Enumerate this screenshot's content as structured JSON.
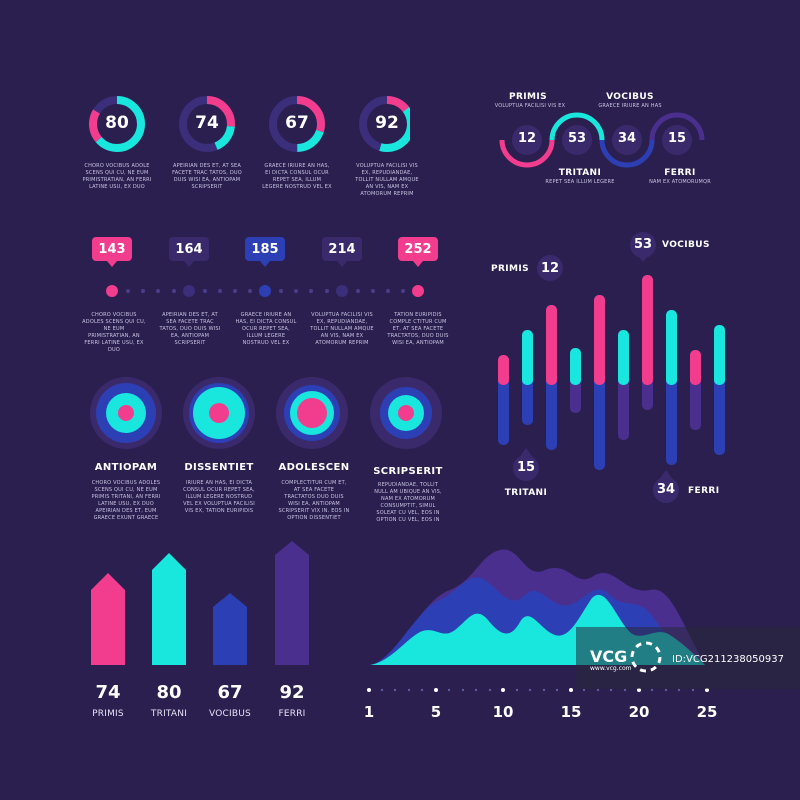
{
  "colors": {
    "background": "#2b1f4f",
    "pink": "#f23d8e",
    "cyan": "#19e6dc",
    "blue": "#2d3fb5",
    "purple": "#4a2f8f",
    "dark_circle": "#3a2a6c"
  },
  "donuts": [
    {
      "value": "80",
      "percent": 80,
      "text": "CHORO VOCIBUS ADOLE SCENS QUI CU, NE EUM PRIMISTRATIAN, AN FERRI LATINE USU, EX DUO"
    },
    {
      "value": "74",
      "percent": 74,
      "text": "APEIRIAN DES ET, AT SEA FACETE TRAC TATOS, DUO DUIS WISI EA, ANTIOPAM SCRIPSERIT"
    },
    {
      "value": "67",
      "percent": 67,
      "text": "GRAECE IRIURE AN HAS, EI DICTA CONSUL OCUR REPET SEA, ILLUM LEGERE NOSTRUD VEL EX"
    },
    {
      "value": "92",
      "percent": 92,
      "text": "VOLUPTUA FACILISI VIS EX, REPUDIANDAE, TOLLIT NULLAM AMQUE AN VIS, NAM EX ATOMORUM REPRIM"
    }
  ],
  "wave": {
    "items": [
      {
        "value": "12",
        "title": "PRIMIS",
        "sub": "VOLUPTUA FACILISI VIS EX"
      },
      {
        "value": "53",
        "title": "VOCIBUS",
        "sub": "GRAECE IRIURE AN HAS"
      },
      {
        "value": "34",
        "title": "TRITANI",
        "sub": "REPET SEA ILLUM LEGERE"
      },
      {
        "value": "15",
        "title": "FERRI",
        "sub": "NAM EX ATOMORUMQR"
      }
    ]
  },
  "timeline": {
    "pins": [
      "143",
      "164",
      "185",
      "214",
      "252"
    ],
    "texts": [
      "CHORO VOCIBUS ADOLES SCENS QUI CU, NE EUM PRIMISTRATIAN, AN FERRI LATINE USU, EX DUO",
      "APEIRIAN DES ET, AT SEA FACETE TRAC TATOS, DUO DUIS WISI EA, ANTIOPAM SCRIPSERIT",
      "GRAECE IRIURE AN HAS, EI DICTA CONSUL OCUR REPET SEA, ILLUM LEGERE NOSTRUD VEL EX",
      "VOLUPTUA FACILISI VIS EX, REPUDIANDAE, TOLLIT NULLAM AMQUE AN VIS, NAM EX ATOMORUM REPRIM",
      "TATION EURIPIDIS COMPLE CTITUR CUM ET, AT SEA FACETE TRACTATOS, DUO DUIS WISI EA, ANTIOPAM"
    ]
  },
  "targets": [
    {
      "title": "ANTIOPAM",
      "text": "CHORO VOCIBUS ADOLES SCENS QUI CU, NE EUM PRIMIS TRITANI, AN FERRI LATINE USU, EX DUO APEIRIAN DES ET, EUM GRAECE EXUNT GRAECE"
    },
    {
      "title": "DISSENTIET",
      "text": "IRIURE AN HAS, EI DICTA CONSUL OCUR REPET SEA, ILLUM LEGERE NOSTRUD VEL EX VOLUPTUA FACILISI VIS EX, TATION EURIPIDIS"
    },
    {
      "title": "ADOLESCEN",
      "text": "COMPLECTITUR CUM ET, AT SEA FACETE TRACTATOS DUO DUIS WISI EA, ANTIOPAM SCRIPSERIT VIX IN. EOS IN OPTION DISSENTIET"
    },
    {
      "title": "SCRIPSERIT",
      "text": "REPUDIANDAE, TOLLIT NULL AM UBIQUE AN VIS, NAM EX ATOMORUM CONSUMPTIT, SIMUL SOLEAT CU VEL, EOS IN OPTION CU VEL, EOS IN"
    }
  ],
  "bar_chart": {
    "callouts": [
      {
        "name": "PRIMIS",
        "value": "12"
      },
      {
        "name": "VOCIBUS",
        "value": "53"
      },
      {
        "name": "TRITANI",
        "value": "15"
      },
      {
        "name": "FERRI",
        "value": "34"
      }
    ]
  },
  "arrows": [
    {
      "value": "74",
      "label": "PRIMIS"
    },
    {
      "value": "80",
      "label": "TRITANI"
    },
    {
      "value": "67",
      "label": "VOCIBUS"
    },
    {
      "value": "92",
      "label": "FERRI"
    }
  ],
  "area_axis": [
    "1",
    "5",
    "10",
    "15",
    "20",
    "25"
  ],
  "watermark": {
    "brand": "VCG",
    "site": "www.vcg.com",
    "id": "ID:VCG211238050937"
  }
}
